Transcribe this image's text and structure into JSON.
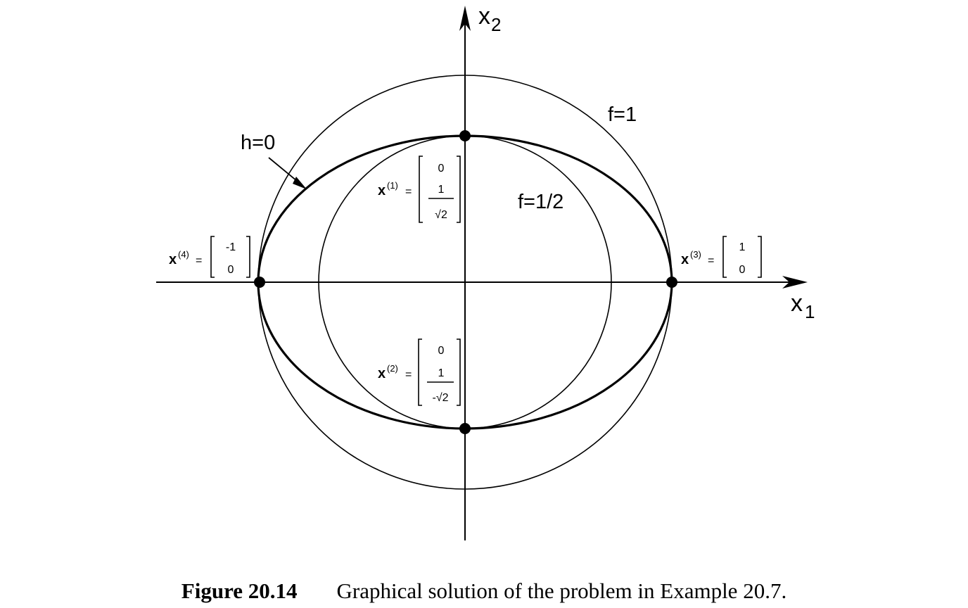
{
  "axes": {
    "x_label": "x",
    "x_sub": "1",
    "y_label": "x",
    "y_sub": "2"
  },
  "curves": {
    "f_outer": "f=1",
    "f_inner": "f=1/2",
    "h": "h=0"
  },
  "points": [
    {
      "id": "x1",
      "name": "x",
      "sup": "(1)",
      "eq": "=",
      "top": "0",
      "bottom_num": "1",
      "bottom_den": "√2"
    },
    {
      "id": "x2",
      "name": "x",
      "sup": "(2)",
      "eq": "=",
      "top": "0",
      "bottom_num": "1",
      "bottom_den": "-√2"
    },
    {
      "id": "x3",
      "name": "x",
      "sup": "(3)",
      "eq": "=",
      "top": "1",
      "bottom": "0"
    },
    {
      "id": "x4",
      "name": "x",
      "sup": "(4)",
      "eq": "=",
      "top": "-1",
      "bottom": "0"
    }
  ],
  "caption": {
    "number": "Figure 20.14",
    "text": "Graphical solution of the problem in Example 20.7."
  }
}
